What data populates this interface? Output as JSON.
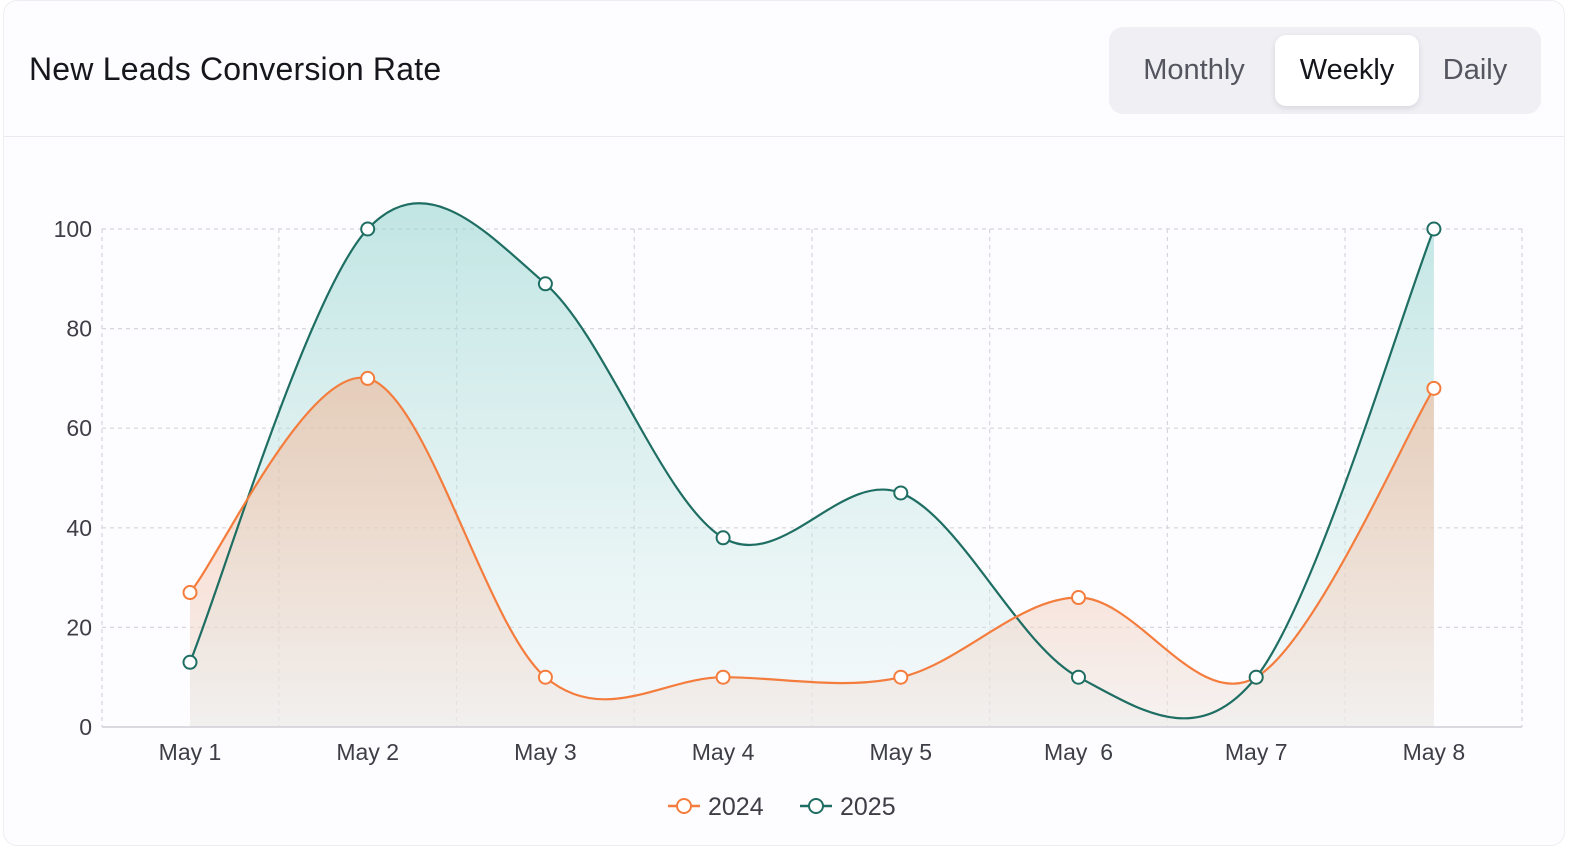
{
  "header": {
    "title": "New Leads Conversion Rate",
    "tabs": [
      {
        "label": "Monthly",
        "active": false
      },
      {
        "label": "Weekly",
        "active": true
      },
      {
        "label": "Daily",
        "active": false
      }
    ]
  },
  "colors": {
    "series_2024": "#f47c3c",
    "series_2025": "#1f6e63",
    "fill_2024": "#fbc3a3",
    "fill_2025": "#9ed9d4"
  },
  "chart_data": {
    "type": "area",
    "title": "New Leads Conversion Rate",
    "categories": [
      "May 1",
      "May 2",
      "May 3",
      "May 4",
      "May 5",
      "May  6",
      "May 7",
      "May 8"
    ],
    "yticks": [
      "100",
      "80",
      "60",
      "40",
      "20",
      "0"
    ],
    "ylim": [
      0,
      100
    ],
    "grid": true,
    "legend_position": "bottom",
    "series": [
      {
        "name": "2024",
        "values": [
          27,
          70,
          10,
          10,
          10,
          26,
          10,
          68
        ]
      },
      {
        "name": "2025",
        "values": [
          13,
          100,
          89,
          38,
          47,
          10,
          10,
          100
        ]
      }
    ]
  }
}
